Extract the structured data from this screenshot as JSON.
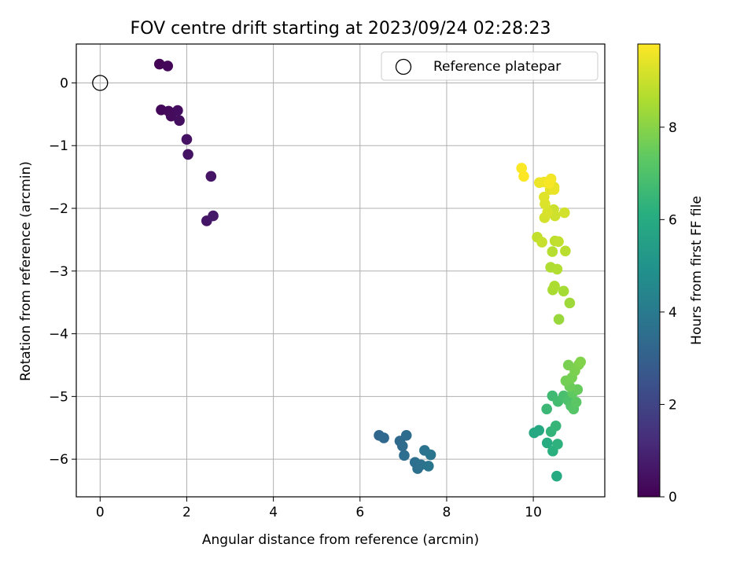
{
  "chart_data": {
    "type": "scatter",
    "title": "FOV centre drift starting at 2023/09/24 02:28:23",
    "xlabel": "Angular distance from reference (arcmin)",
    "ylabel": "Rotation from reference (arcmin)",
    "xlim": [
      -0.55,
      11.65
    ],
    "ylim": [
      -6.6,
      0.62
    ],
    "xticks": [
      0,
      2,
      4,
      6,
      8,
      10
    ],
    "yticks": [
      0,
      -1,
      -2,
      -3,
      -4,
      -5,
      -6
    ],
    "grid": true,
    "legend": {
      "position": "top-right",
      "entries": [
        "Reference platepar"
      ]
    },
    "reference_point": {
      "x": 0,
      "y": 0,
      "name": "Reference platepar"
    },
    "colorbar": {
      "label": "Hours from first FF file",
      "colormap": "viridis",
      "range": [
        0,
        9.8
      ],
      "ticks": [
        0,
        2,
        4,
        6,
        8
      ]
    },
    "points": [
      {
        "x": 1.37,
        "y": 0.3,
        "h": 0.1
      },
      {
        "x": 1.56,
        "y": 0.27,
        "h": 0.15
      },
      {
        "x": 1.41,
        "y": -0.43,
        "h": 0.2
      },
      {
        "x": 1.58,
        "y": -0.45,
        "h": 0.25
      },
      {
        "x": 1.64,
        "y": -0.53,
        "h": 0.3
      },
      {
        "x": 1.79,
        "y": -0.44,
        "h": 0.35
      },
      {
        "x": 1.83,
        "y": -0.6,
        "h": 0.4
      },
      {
        "x": 2.0,
        "y": -0.9,
        "h": 0.45
      },
      {
        "x": 2.03,
        "y": -1.14,
        "h": 0.5
      },
      {
        "x": 2.56,
        "y": -1.49,
        "h": 0.55
      },
      {
        "x": 2.46,
        "y": -2.2,
        "h": 0.6
      },
      {
        "x": 2.61,
        "y": -2.12,
        "h": 0.65
      },
      {
        "x": 6.44,
        "y": -5.62,
        "h": 3.3
      },
      {
        "x": 6.55,
        "y": -5.66,
        "h": 3.35
      },
      {
        "x": 6.92,
        "y": -5.71,
        "h": 3.4
      },
      {
        "x": 6.98,
        "y": -5.79,
        "h": 3.45
      },
      {
        "x": 7.07,
        "y": -5.62,
        "h": 3.5
      },
      {
        "x": 7.02,
        "y": -5.94,
        "h": 3.55
      },
      {
        "x": 7.27,
        "y": -6.05,
        "h": 3.6
      },
      {
        "x": 7.33,
        "y": -6.15,
        "h": 3.65
      },
      {
        "x": 7.41,
        "y": -6.09,
        "h": 3.7
      },
      {
        "x": 7.49,
        "y": -5.86,
        "h": 3.75
      },
      {
        "x": 7.63,
        "y": -5.93,
        "h": 3.8
      },
      {
        "x": 7.58,
        "y": -6.11,
        "h": 3.85
      },
      {
        "x": 10.02,
        "y": -5.58,
        "h": 5.9
      },
      {
        "x": 10.13,
        "y": -5.54,
        "h": 5.95
      },
      {
        "x": 10.54,
        "y": -6.27,
        "h": 6.0
      },
      {
        "x": 10.32,
        "y": -5.74,
        "h": 6.1
      },
      {
        "x": 10.45,
        "y": -5.87,
        "h": 6.2
      },
      {
        "x": 10.56,
        "y": -5.76,
        "h": 6.3
      },
      {
        "x": 10.41,
        "y": -5.56,
        "h": 6.4
      },
      {
        "x": 10.52,
        "y": -5.47,
        "h": 6.5
      },
      {
        "x": 10.31,
        "y": -5.2,
        "h": 6.6
      },
      {
        "x": 10.44,
        "y": -4.99,
        "h": 6.7
      },
      {
        "x": 10.57,
        "y": -5.08,
        "h": 6.8
      },
      {
        "x": 10.7,
        "y": -4.99,
        "h": 6.9
      },
      {
        "x": 10.8,
        "y": -5.06,
        "h": 7.0
      },
      {
        "x": 10.87,
        "y": -5.15,
        "h": 7.1
      },
      {
        "x": 10.93,
        "y": -5.2,
        "h": 7.2
      },
      {
        "x": 10.99,
        "y": -5.09,
        "h": 7.3
      },
      {
        "x": 10.91,
        "y": -4.94,
        "h": 7.4
      },
      {
        "x": 11.02,
        "y": -4.89,
        "h": 7.5
      },
      {
        "x": 10.84,
        "y": -4.84,
        "h": 7.6
      },
      {
        "x": 10.75,
        "y": -4.75,
        "h": 7.7
      },
      {
        "x": 10.89,
        "y": -4.7,
        "h": 7.75
      },
      {
        "x": 10.81,
        "y": -4.5,
        "h": 7.8
      },
      {
        "x": 10.96,
        "y": -4.59,
        "h": 7.85
      },
      {
        "x": 11.05,
        "y": -4.49,
        "h": 7.9
      },
      {
        "x": 11.09,
        "y": -4.45,
        "h": 7.95
      },
      {
        "x": 10.59,
        "y": -3.77,
        "h": 8.3
      },
      {
        "x": 10.84,
        "y": -3.51,
        "h": 8.4
      },
      {
        "x": 10.7,
        "y": -3.32,
        "h": 8.5
      },
      {
        "x": 10.45,
        "y": -3.3,
        "h": 8.55
      },
      {
        "x": 10.49,
        "y": -3.24,
        "h": 8.6
      },
      {
        "x": 10.4,
        "y": -2.94,
        "h": 8.65
      },
      {
        "x": 10.55,
        "y": -2.97,
        "h": 8.7
      },
      {
        "x": 10.44,
        "y": -2.69,
        "h": 8.75
      },
      {
        "x": 10.74,
        "y": -2.68,
        "h": 8.8
      },
      {
        "x": 10.5,
        "y": -2.52,
        "h": 8.85
      },
      {
        "x": 10.58,
        "y": -2.53,
        "h": 8.9
      },
      {
        "x": 10.09,
        "y": -2.46,
        "h": 8.95
      },
      {
        "x": 10.2,
        "y": -2.54,
        "h": 9.0
      },
      {
        "x": 10.47,
        "y": -2.02,
        "h": 9.05
      },
      {
        "x": 10.5,
        "y": -2.12,
        "h": 9.1
      },
      {
        "x": 10.72,
        "y": -2.07,
        "h": 9.15
      },
      {
        "x": 10.26,
        "y": -2.15,
        "h": 9.2
      },
      {
        "x": 10.33,
        "y": -2.06,
        "h": 9.25
      },
      {
        "x": 10.27,
        "y": -1.93,
        "h": 9.3
      },
      {
        "x": 10.25,
        "y": -1.82,
        "h": 9.35
      },
      {
        "x": 10.39,
        "y": -1.7,
        "h": 9.4
      },
      {
        "x": 10.48,
        "y": -1.66,
        "h": 9.45
      },
      {
        "x": 10.48,
        "y": -1.7,
        "h": 9.5
      },
      {
        "x": 10.14,
        "y": -1.59,
        "h": 9.55
      },
      {
        "x": 10.25,
        "y": -1.58,
        "h": 9.6
      },
      {
        "x": 10.41,
        "y": -1.53,
        "h": 9.65
      },
      {
        "x": 10.36,
        "y": -1.6,
        "h": 9.7
      },
      {
        "x": 9.73,
        "y": -1.36,
        "h": 9.75
      },
      {
        "x": 9.78,
        "y": -1.49,
        "h": 9.8
      }
    ]
  }
}
